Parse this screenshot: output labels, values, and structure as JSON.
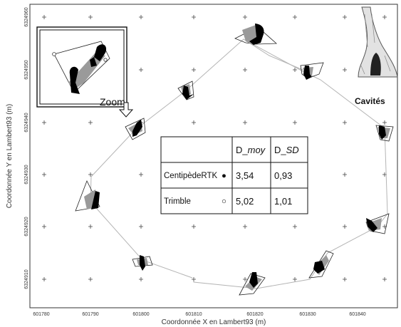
{
  "axes": {
    "x_title": "Coordonnée X en Lambert93 (m)",
    "y_title": "Coordonnée Y en Lambert93 (m)",
    "x_ticks": [
      "601780",
      "601790",
      "601800",
      "601810",
      "601820",
      "601830",
      "601840"
    ],
    "y_ticks": [
      "6324960",
      "6324950",
      "6324940",
      "6324930",
      "6324920",
      "6324910"
    ]
  },
  "labels": {
    "zoom": "Zoom",
    "cavites": "Cavités"
  },
  "table": {
    "headers": [
      "",
      "D_moy",
      "D_SD"
    ],
    "rows": [
      {
        "device": "CentipèdeRTK",
        "symbol": "●",
        "d_moy": "3,54",
        "d_sd": "0,93"
      },
      {
        "device": "Trimble",
        "symbol": "○",
        "d_moy": "5,02",
        "d_sd": "1,01"
      }
    ]
  },
  "colors": {
    "route": "#b5b5b5",
    "cluster_gray": "#9a9a9a",
    "cluster_black": "#000000"
  },
  "icons": [
    "tree-cavity-icon",
    "zoom-arrow-icon"
  ]
}
